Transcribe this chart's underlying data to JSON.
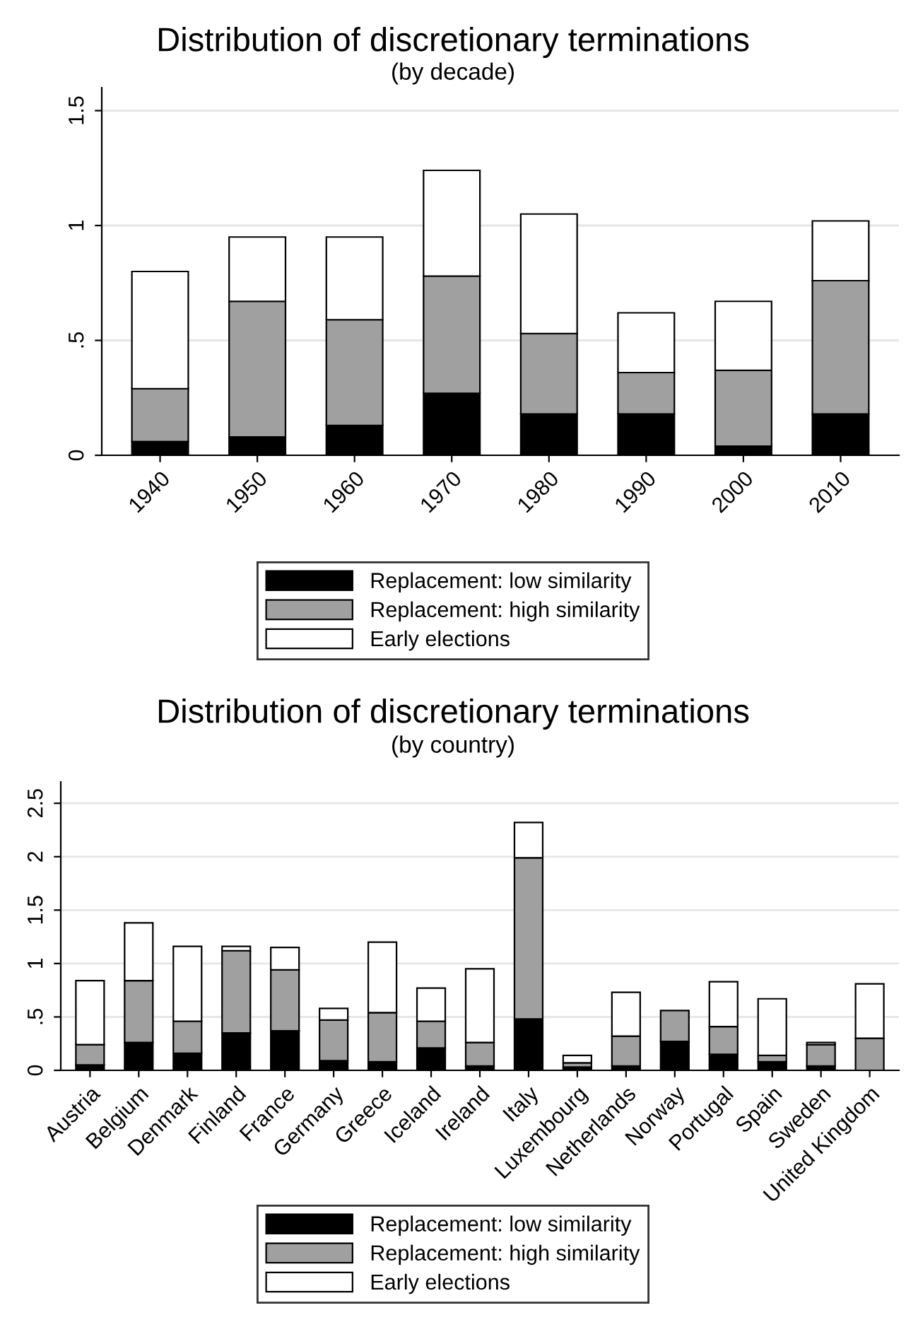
{
  "chart_data": [
    {
      "type": "bar",
      "title": "Distribution of discretionary terminations",
      "subtitle": "(by decade)",
      "stacked": true,
      "categories": [
        "1940",
        "1950",
        "1960",
        "1970",
        "1980",
        "1990",
        "2000",
        "2010"
      ],
      "series": [
        {
          "name": "Replacement: low similarity",
          "color": "#000000",
          "values": [
            0.06,
            0.08,
            0.13,
            0.27,
            0.18,
            0.18,
            0.04,
            0.18
          ]
        },
        {
          "name": "Replacement: high similarity",
          "color": "#a0a0a0",
          "values": [
            0.23,
            0.59,
            0.46,
            0.51,
            0.35,
            0.18,
            0.33,
            0.58
          ]
        },
        {
          "name": "Early elections",
          "color": "#ffffff",
          "values": [
            0.51,
            0.28,
            0.36,
            0.46,
            0.52,
            0.26,
            0.3,
            0.26
          ]
        }
      ],
      "ylim": [
        0,
        1.6
      ],
      "yticks": [
        0,
        {
          "value": 0.5,
          "label": ".5"
        },
        1,
        1.5
      ],
      "grid": "y",
      "legend": "bottom"
    },
    {
      "type": "bar",
      "title": "Distribution of discretionary terminations",
      "subtitle": "(by country)",
      "stacked": true,
      "categories": [
        "Austria",
        "Belgium",
        "Denmark",
        "Finland",
        "France",
        "Germany",
        "Greece",
        "Iceland",
        "Ireland",
        "Italy",
        "Luxembourg",
        "Netherlands",
        "Norway",
        "Portugal",
        "Spain",
        "Sweden",
        "United Kingdom"
      ],
      "series": [
        {
          "name": "Replacement: low similarity",
          "color": "#000000",
          "values": [
            0.05,
            0.26,
            0.16,
            0.35,
            0.37,
            0.09,
            0.08,
            0.21,
            0.04,
            0.48,
            0.03,
            0.04,
            0.27,
            0.15,
            0.08,
            0.04,
            0
          ]
        },
        {
          "name": "Replacement: high similarity",
          "color": "#a0a0a0",
          "values": [
            0.19,
            0.58,
            0.3,
            0.77,
            0.57,
            0.38,
            0.46,
            0.25,
            0.22,
            1.51,
            0.04,
            0.28,
            0.29,
            0.26,
            0.06,
            0.2,
            0.3
          ]
        },
        {
          "name": "Early elections",
          "color": "#ffffff",
          "values": [
            0.6,
            0.54,
            0.7,
            0.04,
            0.21,
            0.11,
            0.66,
            0.31,
            0.69,
            0.33,
            0.07,
            0.41,
            0,
            0.42,
            0.53,
            0.02,
            0.51
          ]
        }
      ],
      "ylim": [
        0,
        2.7
      ],
      "yticks": [
        0,
        {
          "value": 0.5,
          "label": ".5"
        },
        1,
        1.5,
        2,
        2.5
      ],
      "grid": "y",
      "legend": "bottom"
    }
  ]
}
